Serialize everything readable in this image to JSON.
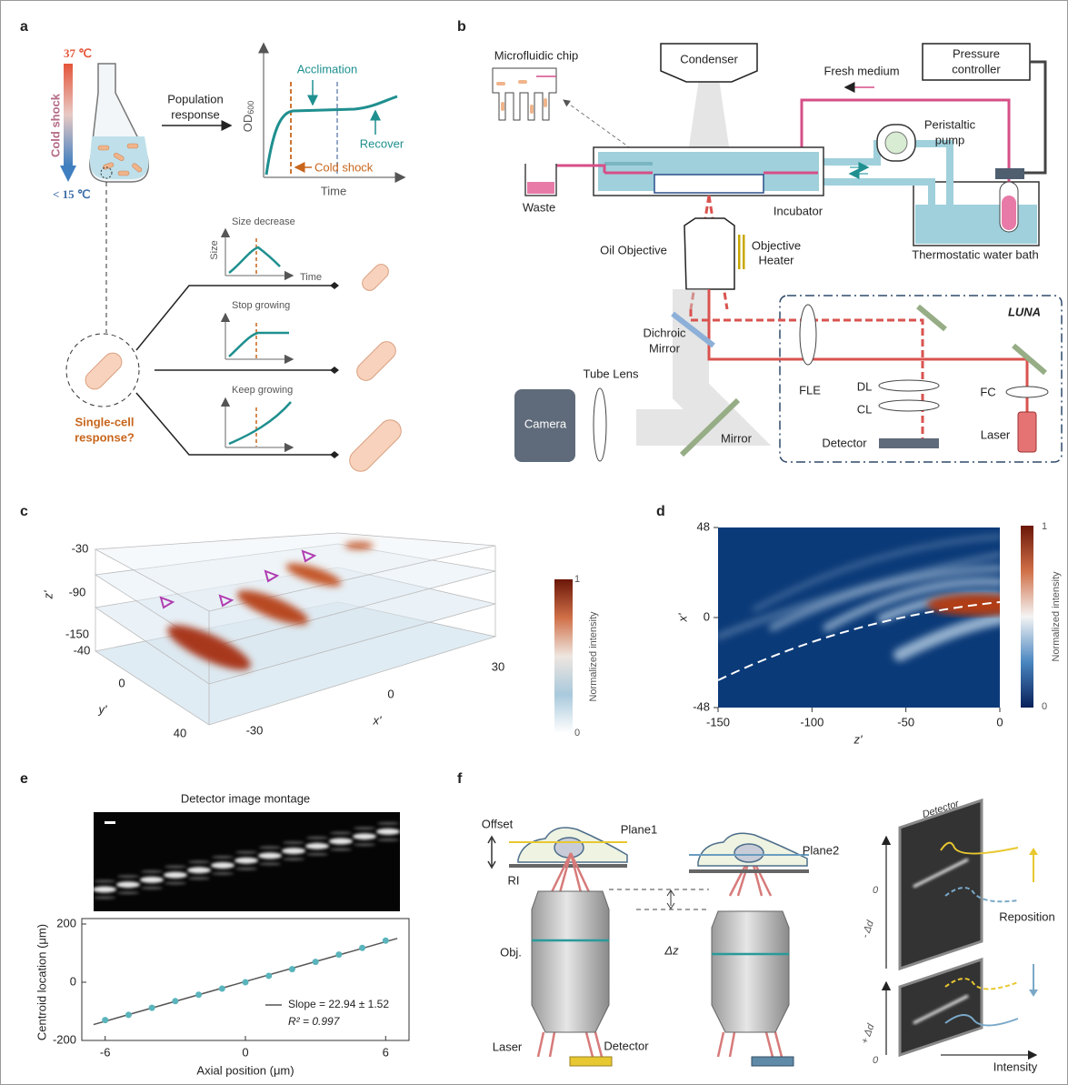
{
  "panel_a": {
    "label": "a",
    "temp_high": "37 ℃",
    "cold_shock_vertical": "Cold shock",
    "temp_low": "< 15 ℃",
    "population_response": [
      "Population",
      "response"
    ],
    "acclimation": "Acclimation",
    "recover": "Recover",
    "cold_shock": "Cold shock",
    "y_label": "OD",
    "y_label_sub": "600",
    "x_label": "Time",
    "single_cell": [
      "Single-cell",
      "response?"
    ],
    "insets": [
      {
        "title": "Size decrease",
        "y_label": "Size",
        "x_label": "Time"
      },
      {
        "title": "Stop growing"
      },
      {
        "title": "Keep growing"
      }
    ]
  },
  "panel_b": {
    "label": "b",
    "microfluidic_chip": "Microfluidic chip",
    "condenser": "Condenser",
    "pressure_controller": [
      "Pressure",
      "controller"
    ],
    "fresh_medium": "Fresh medium",
    "peristaltic_pump": [
      "Peristaltic",
      "pump"
    ],
    "waste": "Waste",
    "incubator": "Incubator",
    "water_bath": "Thermostatic water bath",
    "oil_objective": "Oil Objective",
    "objective_heater": [
      "Objective",
      "Heater"
    ],
    "luna": "LUNA",
    "dichroic_mirror": [
      "Dichroic",
      "Mirror"
    ],
    "tube_lens": "Tube Lens",
    "camera": "Camera",
    "mirror": "Mirror",
    "fle": "FLE",
    "dl": "DL",
    "cl": "CL",
    "fc": "FC",
    "detector": "Detector",
    "laser": "Laser"
  },
  "panel_c": {
    "label": "c",
    "z_label": "z'",
    "y_label": "y'",
    "x_label": "x'",
    "z_ticks": [
      -30,
      -90,
      -150
    ],
    "y_ticks": [
      -40,
      0,
      40
    ],
    "x_ticks": [
      -30,
      0,
      30
    ],
    "colorbar_label": "Normalized intensity",
    "colorbar_ticks": [
      1,
      0
    ]
  },
  "panel_d": {
    "label": "d",
    "y_label": "x'",
    "x_label": "z'",
    "xlim": [
      -150,
      0
    ],
    "ylim": [
      -48,
      48
    ],
    "xticks": [
      -150,
      -100,
      -50,
      0
    ],
    "yticks": [
      48,
      0,
      -48
    ],
    "colorbar_label": "Normalized intensity",
    "colorbar_ticks": [
      1,
      0
    ]
  },
  "panel_e": {
    "label": "e",
    "montage_title": "Detector image montage",
    "legend": [
      "Slope = 22.94 ± 1.52",
      "R² = 0.997"
    ]
  },
  "chart_data": {
    "type": "scatter",
    "x": [
      -6,
      -5,
      -4,
      -3,
      -2,
      -1,
      0,
      1,
      2,
      3,
      4,
      5,
      6
    ],
    "values": [
      -130,
      -112,
      -88,
      -65,
      -43,
      -22,
      0,
      22,
      45,
      70,
      95,
      118,
      143
    ],
    "xlim": [
      -7,
      7
    ],
    "ylim": [
      -200,
      200
    ],
    "xticks": [
      -6,
      0,
      6
    ],
    "yticks": [
      200,
      0,
      -200
    ],
    "x_label": "Axial position (μm)",
    "y_label": "Centroid location (μm)",
    "color": "#5ab4bc"
  },
  "panel_f": {
    "label": "f",
    "offset": "Offset",
    "plane1": "Plane1",
    "ri": "RI",
    "obj": "Obj.",
    "laser": "Laser",
    "detector": "Detector",
    "delta_z": "Δz",
    "plane2": "Plane2",
    "detector_plate": "Detector",
    "zero_top": 0,
    "minus_dd": "- Δd",
    "reposition": "Reposition",
    "plus_dd": "+ Δd",
    "zero_bottom": 0,
    "intensity": "Intensity"
  }
}
